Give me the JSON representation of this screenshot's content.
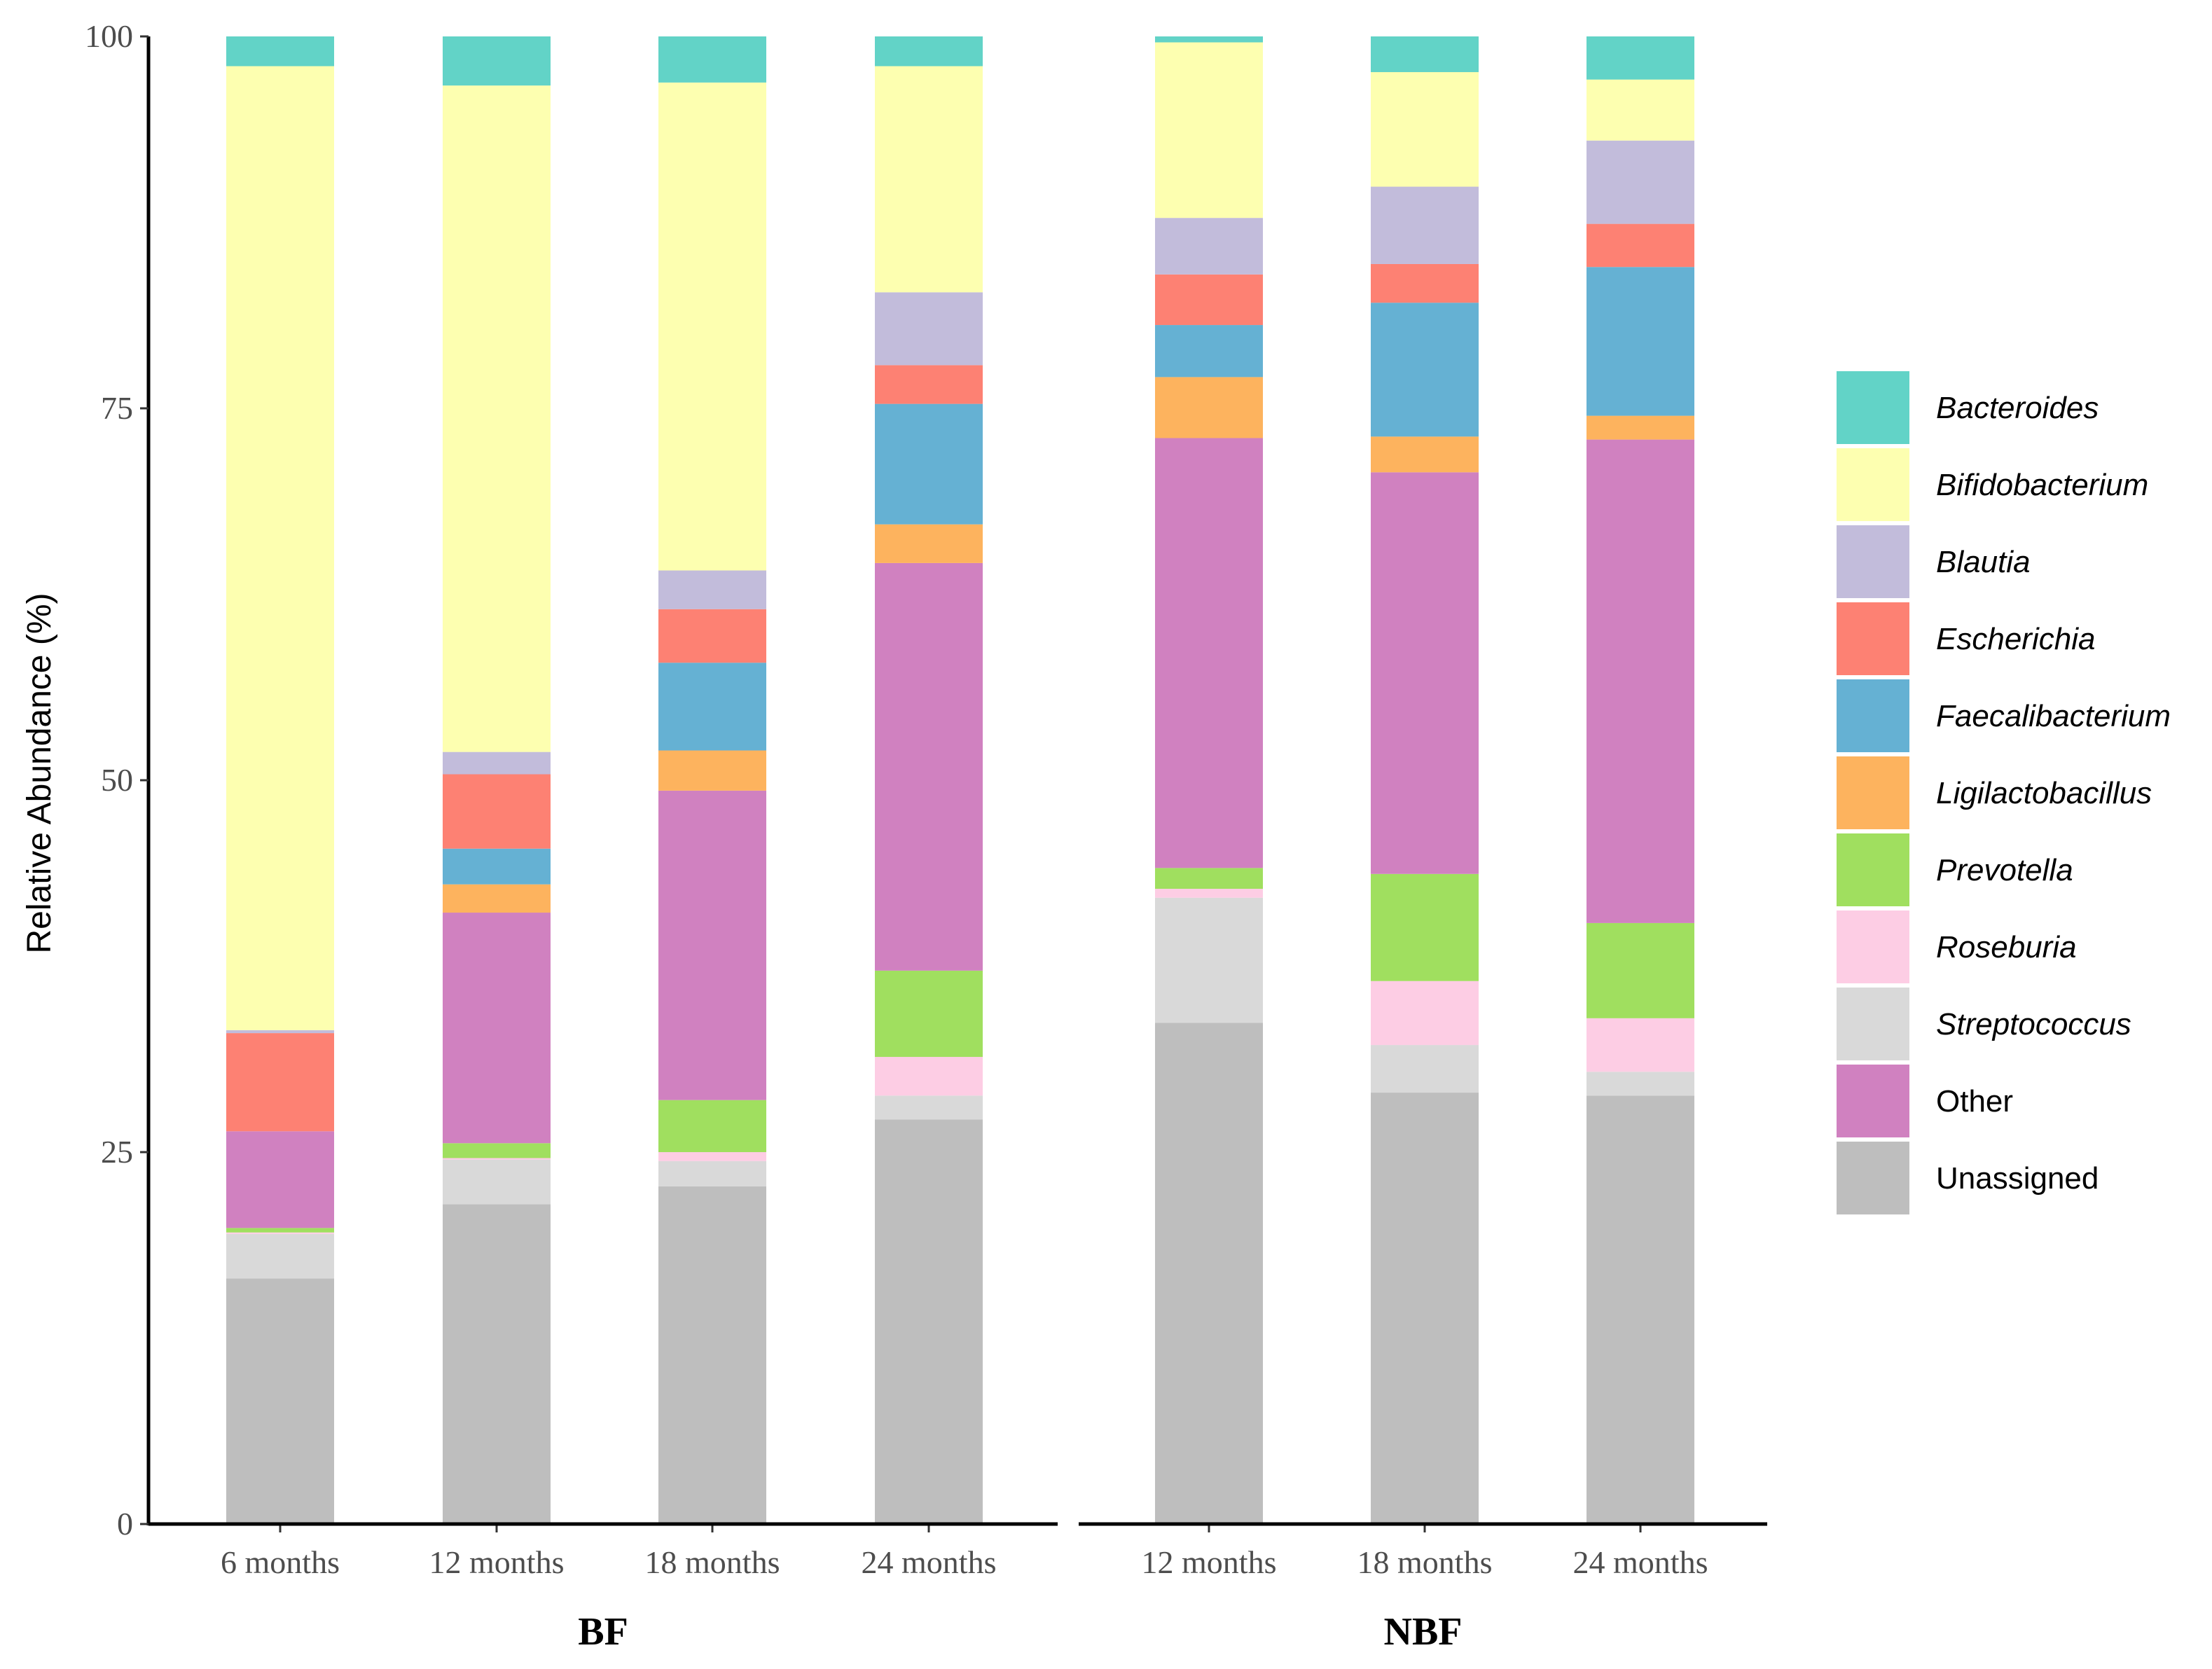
{
  "chart_data": {
    "type": "bar",
    "stacked": true,
    "ylabel": "Relative Abundance (%)",
    "ylim": [
      0,
      100
    ],
    "yticks": [
      "0",
      "25",
      "50",
      "75",
      "100"
    ],
    "grid": false,
    "legend_position": "right",
    "genera": [
      {
        "name": "Bacteroides",
        "color": "#62d3c7",
        "italic": true
      },
      {
        "name": "Bifidobacterium",
        "color": "#fdffb0",
        "italic": true
      },
      {
        "name": "Blautia",
        "color": "#c2bcdb",
        "italic": true
      },
      {
        "name": "Escherichia",
        "color": "#fd8173",
        "italic": true
      },
      {
        "name": "Faecalibacterium",
        "color": "#65b1d3",
        "italic": true
      },
      {
        "name": "Ligilactobacillus",
        "color": "#fdb35e",
        "italic": true
      },
      {
        "name": "Prevotella",
        "color": "#a0df5f",
        "italic": true
      },
      {
        "name": "Roseburia",
        "color": "#fdcde4",
        "italic": true
      },
      {
        "name": "Streptococcus",
        "color": "#d9d9d9",
        "italic": true
      },
      {
        "name": "Other",
        "color": "#d081c0",
        "italic": false
      },
      {
        "name": "Unassigned",
        "color": "#bebebe",
        "italic": false
      }
    ],
    "stack_order_bottom_up": [
      "Unassigned",
      "Streptococcus",
      "Roseburia",
      "Prevotella",
      "Other",
      "Ligilactobacillus",
      "Faecalibacterium",
      "Escherichia",
      "Blautia",
      "Bifidobacterium",
      "Bacteroides"
    ],
    "facets": [
      {
        "name": "BF",
        "bars": [
          {
            "label": "6 months",
            "values": {
              "Unassigned": 16.5,
              "Streptococcus": 3.0,
              "Roseburia": 0.1,
              "Prevotella": 0.3,
              "Other": 6.5,
              "Ligilactobacillus": 0.0,
              "Faecalibacterium": 0.0,
              "Escherichia": 6.6,
              "Blautia": 0.2,
              "Bifidobacterium": 64.8,
              "Bacteroides": 2.0
            }
          },
          {
            "label": "12 months",
            "values": {
              "Unassigned": 21.5,
              "Streptococcus": 3.0,
              "Roseburia": 0.1,
              "Prevotella": 1.0,
              "Other": 15.5,
              "Ligilactobacillus": 1.9,
              "Faecalibacterium": 2.4,
              "Escherichia": 5.0,
              "Blautia": 1.5,
              "Bifidobacterium": 44.8,
              "Bacteroides": 3.3
            }
          },
          {
            "label": "18 months",
            "values": {
              "Unassigned": 22.7,
              "Streptococcus": 1.7,
              "Roseburia": 0.6,
              "Prevotella": 3.5,
              "Other": 20.8,
              "Ligilactobacillus": 2.7,
              "Faecalibacterium": 5.9,
              "Escherichia": 3.6,
              "Blautia": 2.6,
              "Bifidobacterium": 32.8,
              "Bacteroides": 3.1
            }
          },
          {
            "label": "24 months",
            "values": {
              "Unassigned": 27.2,
              "Streptococcus": 1.6,
              "Roseburia": 2.6,
              "Prevotella": 5.8,
              "Other": 27.4,
              "Ligilactobacillus": 2.6,
              "Faecalibacterium": 8.1,
              "Escherichia": 2.6,
              "Blautia": 4.9,
              "Bifidobacterium": 15.2,
              "Bacteroides": 2.0
            }
          }
        ]
      },
      {
        "name": "NBF",
        "bars": [
          {
            "label": "12 months",
            "values": {
              "Unassigned": 33.7,
              "Streptococcus": 8.4,
              "Roseburia": 0.6,
              "Prevotella": 1.4,
              "Other": 28.9,
              "Ligilactobacillus": 4.1,
              "Faecalibacterium": 3.5,
              "Escherichia": 3.4,
              "Blautia": 3.8,
              "Bifidobacterium": 11.8,
              "Bacteroides": 0.4
            }
          },
          {
            "label": "18 months",
            "values": {
              "Unassigned": 29.0,
              "Streptococcus": 3.2,
              "Roseburia": 4.3,
              "Prevotella": 7.2,
              "Other": 27.0,
              "Ligilactobacillus": 2.4,
              "Faecalibacterium": 9.0,
              "Escherichia": 2.6,
              "Blautia": 5.2,
              "Bifidobacterium": 7.7,
              "Bacteroides": 2.4
            }
          },
          {
            "label": "24 months",
            "values": {
              "Unassigned": 28.8,
              "Streptococcus": 1.6,
              "Roseburia": 3.6,
              "Prevotella": 6.4,
              "Other": 32.5,
              "Ligilactobacillus": 1.6,
              "Faecalibacterium": 10.0,
              "Escherichia": 2.9,
              "Blautia": 5.6,
              "Bifidobacterium": 4.1,
              "Bacteroides": 2.9
            }
          }
        ]
      }
    ]
  }
}
